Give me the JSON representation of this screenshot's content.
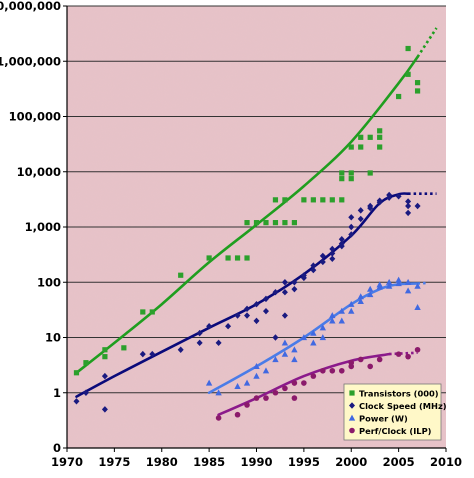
{
  "chart_data": {
    "type": "scatter",
    "title": "",
    "xlabel": "",
    "ylabel": "",
    "y_scale": "log",
    "xlim": [
      1970,
      2010
    ],
    "ylim": [
      0.1,
      10000000
    ],
    "x_ticks": [
      1970,
      1975,
      1980,
      1985,
      1990,
      1995,
      2000,
      2005,
      2010
    ],
    "x_tick_labels": [
      "1970",
      "1975",
      "1980",
      "1985",
      "1990",
      "1995",
      "2000",
      "2005",
      "2010"
    ],
    "y_ticks": [
      0.1,
      1,
      10,
      100,
      1000,
      10000,
      100000,
      1000000,
      10000000
    ],
    "y_tick_labels": [
      "0",
      "1",
      "10",
      "100",
      "1,000",
      "10,000",
      "100,000",
      "1,000,000",
      "10,000,000"
    ],
    "grid": "horizontal",
    "legend_position": "bottom-right",
    "series": [
      {
        "name": "Transistors (000)",
        "marker": "square",
        "color": "#2ca02c",
        "trend_color": "#1f9e1f",
        "points": [
          [
            1971,
            2.3
          ],
          [
            1972,
            3.5
          ],
          [
            1974,
            4.5
          ],
          [
            1974,
            6
          ],
          [
            1976,
            6.5
          ],
          [
            1978,
            29
          ],
          [
            1979,
            29
          ],
          [
            1982,
            134
          ],
          [
            1985,
            275
          ],
          [
            1987,
            275
          ],
          [
            1988,
            275
          ],
          [
            1989,
            275
          ],
          [
            1989,
            1200
          ],
          [
            1990,
            1200
          ],
          [
            1991,
            1200
          ],
          [
            1992,
            1200
          ],
          [
            1992,
            3100
          ],
          [
            1993,
            3100
          ],
          [
            1993,
            1200
          ],
          [
            1994,
            1200
          ],
          [
            1995,
            3100
          ],
          [
            1996,
            3100
          ],
          [
            1997,
            3100
          ],
          [
            1998,
            3100
          ],
          [
            1999,
            3100
          ],
          [
            1999,
            7500
          ],
          [
            1999,
            9500
          ],
          [
            2000,
            7500
          ],
          [
            2000,
            9500
          ],
          [
            2000,
            28000
          ],
          [
            2001,
            42000
          ],
          [
            2001,
            28000
          ],
          [
            2002,
            42000
          ],
          [
            2002,
            9500
          ],
          [
            2003,
            42000
          ],
          [
            2003,
            28000
          ],
          [
            2003,
            55000
          ],
          [
            2005,
            230000
          ],
          [
            2006,
            1700000
          ],
          [
            2006,
            580000
          ],
          [
            2007,
            410000
          ],
          [
            2007,
            290000
          ]
        ],
        "trend": [
          [
            1971,
            2.3
          ],
          [
            1975,
            8
          ],
          [
            1980,
            40
          ],
          [
            1985,
            230
          ],
          [
            1990,
            1100
          ],
          [
            1995,
            5500
          ],
          [
            2000,
            35000
          ],
          [
            2005,
            400000
          ],
          [
            2007,
            1200000
          ]
        ],
        "trend_dotted": [
          [
            2007,
            1200000
          ],
          [
            2009,
            4000000
          ]
        ]
      },
      {
        "name": "Clock Speed (MHz)",
        "marker": "diamond",
        "color": "#1a1a80",
        "trend_color": "#0a0a7a",
        "points": [
          [
            1971,
            0.7
          ],
          [
            1972,
            1
          ],
          [
            1974,
            2
          ],
          [
            1974,
            0.5
          ],
          [
            1978,
            5
          ],
          [
            1979,
            5
          ],
          [
            1982,
            6
          ],
          [
            1984,
            8
          ],
          [
            1984,
            12
          ],
          [
            1985,
            16
          ],
          [
            1986,
            8
          ],
          [
            1987,
            16
          ],
          [
            1988,
            25
          ],
          [
            1989,
            25
          ],
          [
            1989,
            33
          ],
          [
            1990,
            20
          ],
          [
            1990,
            40
          ],
          [
            1991,
            50
          ],
          [
            1991,
            30
          ],
          [
            1992,
            66
          ],
          [
            1992,
            10
          ],
          [
            1993,
            66
          ],
          [
            1993,
            100
          ],
          [
            1993,
            25
          ],
          [
            1994,
            75
          ],
          [
            1994,
            100
          ],
          [
            1995,
            133
          ],
          [
            1995,
            120
          ],
          [
            1996,
            166
          ],
          [
            1996,
            200
          ],
          [
            1997,
            233
          ],
          [
            1997,
            300
          ],
          [
            1998,
            333
          ],
          [
            1998,
            400
          ],
          [
            1998,
            266
          ],
          [
            1999,
            450
          ],
          [
            1999,
            600
          ],
          [
            1999,
            500
          ],
          [
            2000,
            733
          ],
          [
            2000,
            1000
          ],
          [
            2000,
            1500
          ],
          [
            2001,
            1400
          ],
          [
            2001,
            2000
          ],
          [
            2002,
            2400
          ],
          [
            2002,
            2200
          ],
          [
            2003,
            3000
          ],
          [
            2003,
            2800
          ],
          [
            2004,
            3400
          ],
          [
            2004,
            3800
          ],
          [
            2005,
            3600
          ],
          [
            2006,
            2400
          ],
          [
            2006,
            1800
          ],
          [
            2006,
            2900
          ],
          [
            2007,
            2400
          ]
        ],
        "trend": [
          [
            1971,
            0.85
          ],
          [
            1975,
            2
          ],
          [
            1980,
            5.5
          ],
          [
            1985,
            15
          ],
          [
            1990,
            40
          ],
          [
            1995,
            140
          ],
          [
            2000,
            700
          ],
          [
            2003,
            2700
          ],
          [
            2005,
            3900
          ],
          [
            2006,
            4000
          ]
        ],
        "trend_dotted": [
          [
            2006,
            4000
          ],
          [
            2009,
            4000
          ]
        ]
      },
      {
        "name": "Power (W)",
        "marker": "triangle",
        "color": "#4169e1",
        "trend_color": "#4a7ce8",
        "points": [
          [
            1985,
            1.5
          ],
          [
            1986,
            1
          ],
          [
            1988,
            1.3
          ],
          [
            1989,
            1.5
          ],
          [
            1990,
            2
          ],
          [
            1990,
            3
          ],
          [
            1991,
            2.5
          ],
          [
            1992,
            4
          ],
          [
            1993,
            5
          ],
          [
            1993,
            8
          ],
          [
            1994,
            4
          ],
          [
            1994,
            6
          ],
          [
            1995,
            10
          ],
          [
            1996,
            8
          ],
          [
            1996,
            12
          ],
          [
            1997,
            15
          ],
          [
            1997,
            10
          ],
          [
            1998,
            20
          ],
          [
            1998,
            25
          ],
          [
            1999,
            20
          ],
          [
            1999,
            30
          ],
          [
            2000,
            30
          ],
          [
            2000,
            40
          ],
          [
            2001,
            55
          ],
          [
            2001,
            45
          ],
          [
            2002,
            60
          ],
          [
            2002,
            75
          ],
          [
            2003,
            82
          ],
          [
            2003,
            90
          ],
          [
            2004,
            85
          ],
          [
            2004,
            100
          ],
          [
            2005,
            95
          ],
          [
            2005,
            110
          ],
          [
            2006,
            70
          ],
          [
            2006,
            100
          ],
          [
            2007,
            35
          ],
          [
            2007,
            85
          ]
        ],
        "trend": [
          [
            1985,
            1
          ],
          [
            1990,
            3
          ],
          [
            1995,
            10
          ],
          [
            2000,
            40
          ],
          [
            2003,
            75
          ],
          [
            2005,
            92
          ],
          [
            2007,
            95
          ]
        ],
        "trend_dotted": [
          [
            2007,
            95
          ],
          [
            2008,
            97
          ]
        ]
      },
      {
        "name": "Perf/Clock (ILP)",
        "marker": "circle",
        "color": "#8b1a6b",
        "trend_color": "#8b1a8b",
        "points": [
          [
            1986,
            0.35
          ],
          [
            1988,
            0.4
          ],
          [
            1989,
            0.6
          ],
          [
            1990,
            0.8
          ],
          [
            1991,
            0.8
          ],
          [
            1992,
            1
          ],
          [
            1993,
            1.2
          ],
          [
            1994,
            1.5
          ],
          [
            1994,
            0.8
          ],
          [
            1995,
            1.5
          ],
          [
            1996,
            2
          ],
          [
            1997,
            2.5
          ],
          [
            1998,
            2.5
          ],
          [
            1999,
            2.5
          ],
          [
            2000,
            3
          ],
          [
            2000,
            3.5
          ],
          [
            2001,
            4
          ],
          [
            2002,
            3
          ],
          [
            2003,
            4
          ],
          [
            2005,
            5
          ],
          [
            2006,
            4.5
          ],
          [
            2007,
            6
          ]
        ],
        "trend": [
          [
            1986,
            0.4
          ],
          [
            1990,
            0.8
          ],
          [
            1995,
            2
          ],
          [
            2000,
            3.8
          ],
          [
            2004,
            5
          ]
        ],
        "trend_dotted": [
          [
            2004,
            5
          ],
          [
            2007,
            5.3
          ]
        ]
      }
    ]
  }
}
